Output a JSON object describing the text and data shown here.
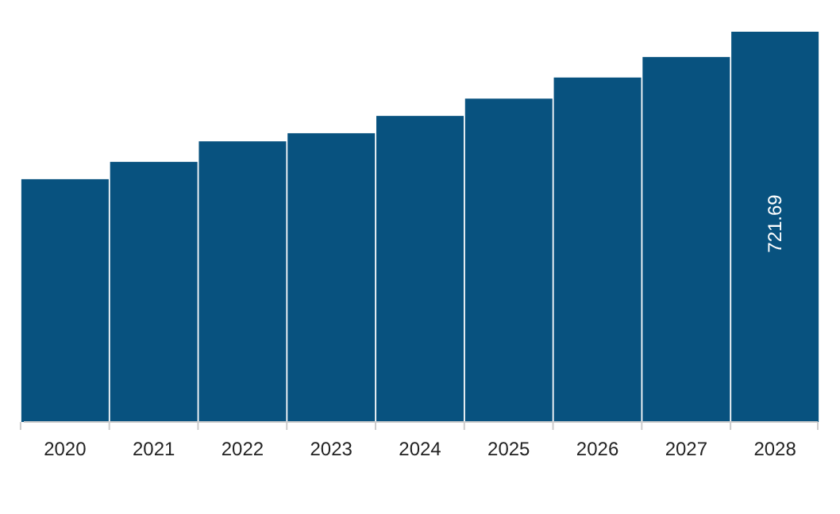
{
  "chart_data": {
    "type": "bar",
    "categories": [
      "2020",
      "2021",
      "2022",
      "2023",
      "2024",
      "2025",
      "2026",
      "2027",
      "2028"
    ],
    "values": [
      449,
      481,
      519,
      534,
      566,
      598,
      637,
      675,
      721.69
    ],
    "color": "#08527f",
    "value_labels": [
      null,
      null,
      null,
      null,
      null,
      null,
      null,
      null,
      "721.69"
    ]
  }
}
